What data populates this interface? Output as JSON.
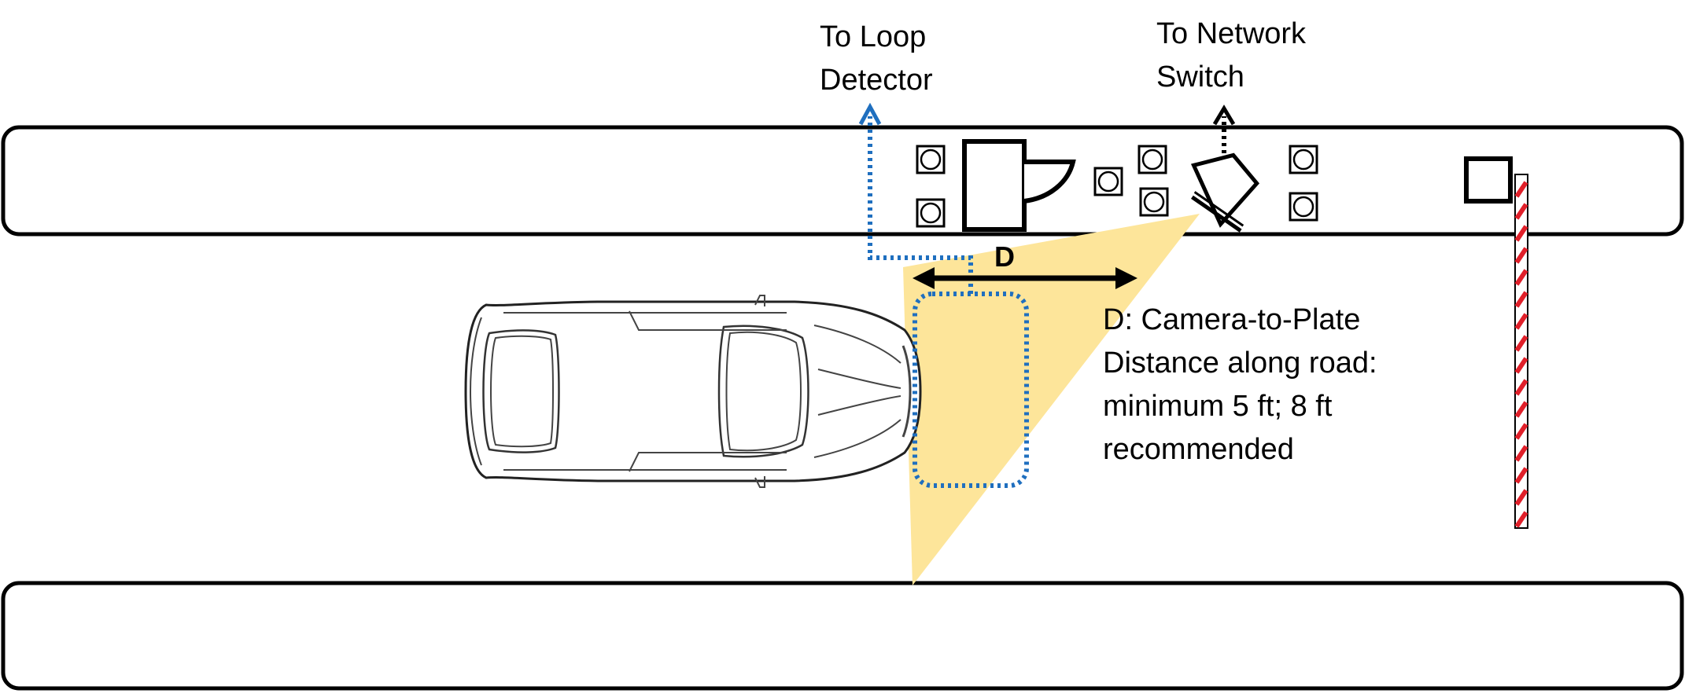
{
  "labels": {
    "loop_detector": [
      "To Loop",
      "Detector"
    ],
    "network_switch": [
      "To Network",
      "Switch"
    ],
    "distance_marker": "D",
    "distance_note": [
      "D: Camera-to-Plate",
      "Distance along road:",
      "minimum 5 ft; 8 ft",
      "recommended"
    ]
  },
  "colors": {
    "outline": "#000000",
    "loop_line": "#1f6fbf",
    "camera_field_of_view": "#fde59a",
    "barrier_stripe": "#e0202a"
  },
  "icons": {
    "kiosk": "kiosk-icon",
    "camera": "camera-icon",
    "bollard": "bollard-icon",
    "barrier_gate": "barrier-gate-icon",
    "vehicle": "car-icon"
  }
}
